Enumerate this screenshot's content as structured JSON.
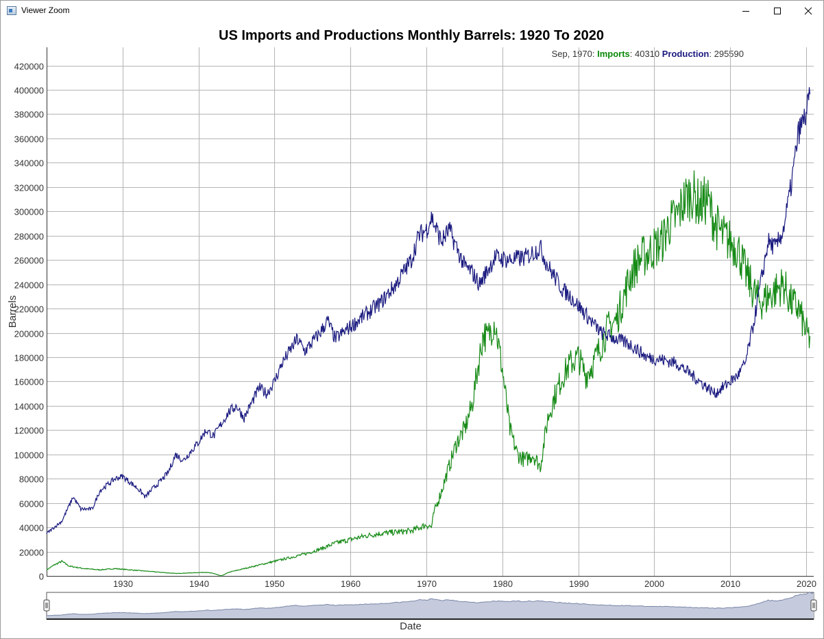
{
  "window": {
    "title": "Viewer Zoom",
    "minimize_icon": "minimize-icon",
    "maximize_icon": "maximize-icon",
    "close_icon": "close-icon"
  },
  "readout": {
    "date": "Sep, 1970",
    "imports_label": "Imports",
    "imports_value": "40310",
    "production_label": "Production",
    "production_value": "295590"
  },
  "navigator": {
    "xlabel": "Date"
  },
  "colors": {
    "imports": "#168a16",
    "production": "#1a1a80",
    "grid": "#b4b4b4",
    "navigator_fill": "#c5cbdc",
    "navigator_line": "#7a86a8"
  },
  "chart_data": {
    "type": "line",
    "title": "US Imports and Productions Monthly Barrels: 1920 To 2020",
    "xlabel": "Date",
    "ylabel": "Barrels",
    "xlim": [
      1920,
      2021
    ],
    "ylim": [
      0,
      435000
    ],
    "x_ticks": [
      1930,
      1940,
      1950,
      1960,
      1970,
      1980,
      1990,
      2000,
      2010,
      2020
    ],
    "y_ticks": [
      0,
      20000,
      40000,
      60000,
      80000,
      100000,
      120000,
      140000,
      160000,
      180000,
      200000,
      220000,
      240000,
      260000,
      280000,
      300000,
      320000,
      340000,
      360000,
      380000,
      400000,
      420000
    ],
    "grid": true,
    "series": [
      {
        "name": "Imports",
        "x": [
          1920,
          1921,
          1922,
          1923,
          1925,
          1927,
          1929,
          1931,
          1933,
          1935,
          1937,
          1939,
          1941,
          1942,
          1943,
          1944,
          1946,
          1948,
          1950,
          1952,
          1954,
          1956,
          1958,
          1960,
          1962,
          1964,
          1966,
          1968,
          1970,
          1970.7,
          1971,
          1972,
          1973,
          1974,
          1975,
          1976,
          1977,
          1977.5,
          1978,
          1979,
          1980,
          1981,
          1982,
          1983,
          1984,
          1985,
          1986,
          1987,
          1988,
          1989,
          1990,
          1991,
          1992,
          1993,
          1994,
          1995,
          1996,
          1997,
          1998,
          1999,
          2000,
          2001,
          2002,
          2003,
          2004,
          2005,
          2006,
          2007,
          2008,
          2009,
          2010,
          2011,
          2012,
          2013,
          2014,
          2015,
          2016,
          2017,
          2018,
          2019,
          2020,
          2020.5
        ],
        "values": [
          5000,
          9000,
          12000,
          8000,
          6000,
          5000,
          6000,
          5000,
          4000,
          3000,
          2000,
          2500,
          3000,
          2000,
          0,
          3000,
          6000,
          9000,
          12000,
          15000,
          18000,
          22000,
          27000,
          30000,
          33000,
          35000,
          36000,
          37000,
          42000,
          40310,
          52000,
          70000,
          90000,
          110000,
          120000,
          140000,
          180000,
          200000,
          195000,
          210000,
          170000,
          120000,
          100000,
          95000,
          100000,
          90000,
          130000,
          150000,
          165000,
          175000,
          180000,
          165000,
          175000,
          190000,
          205000,
          210000,
          230000,
          250000,
          260000,
          265000,
          270000,
          275000,
          290000,
          295000,
          310000,
          315000,
          305000,
          310000,
          290000,
          280000,
          275000,
          270000,
          250000,
          235000,
          225000,
          230000,
          235000,
          240000,
          225000,
          220000,
          200000,
          195000
        ]
      },
      {
        "name": "Production",
        "x": [
          1920,
          1922,
          1923.5,
          1924.5,
          1926,
          1927,
          1929,
          1930,
          1932,
          1933,
          1934,
          1935,
          1936,
          1937,
          1938,
          1940,
          1941,
          1942,
          1944,
          1945,
          1946,
          1948,
          1949,
          1950,
          1951,
          1953,
          1954,
          1956,
          1957,
          1958,
          1960,
          1962,
          1964,
          1966,
          1968,
          1969,
          1970,
          1970.7,
          1971,
          1972,
          1973,
          1975,
          1976,
          1977,
          1979,
          1981,
          1983,
          1985,
          1986,
          1987,
          1988,
          1989,
          1991,
          1993,
          1995,
          1997,
          1999,
          2001,
          2003,
          2005,
          2006,
          2007,
          2008,
          2009,
          2010,
          2011,
          2012,
          2013,
          2014,
          2015,
          2016,
          2017,
          2018,
          2019,
          2020,
          2020.5
        ],
        "values": [
          35000,
          45000,
          65000,
          55000,
          55000,
          70000,
          80000,
          82000,
          72000,
          65000,
          72000,
          78000,
          85000,
          100000,
          95000,
          110000,
          120000,
          115000,
          135000,
          140000,
          130000,
          155000,
          150000,
          160000,
          175000,
          195000,
          185000,
          200000,
          210000,
          195000,
          205000,
          215000,
          225000,
          240000,
          260000,
          280000,
          285000,
          295590,
          290000,
          275000,
          285000,
          255000,
          250000,
          240000,
          262000,
          260000,
          262000,
          270000,
          255000,
          245000,
          235000,
          230000,
          215000,
          200000,
          195000,
          190000,
          180000,
          178000,
          175000,
          165000,
          160000,
          155000,
          150000,
          155000,
          160000,
          165000,
          175000,
          205000,
          240000,
          275000,
          270000,
          285000,
          320000,
          365000,
          380000,
          395000
        ]
      }
    ]
  }
}
